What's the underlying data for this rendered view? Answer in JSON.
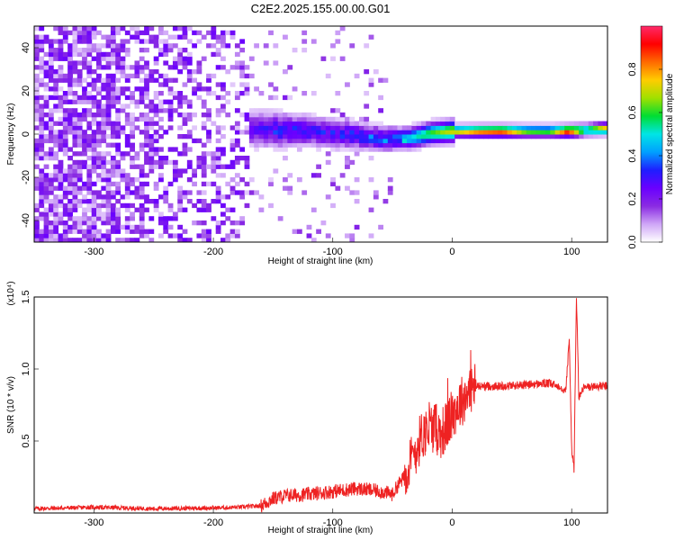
{
  "title": "C2E2.2025.155.00.00.G01",
  "chart_data": [
    {
      "type": "heatmap",
      "xlabel": "Height of straight line (km)",
      "ylabel": "Frequency (Hz)",
      "xlim": [
        -350,
        130
      ],
      "ylim": [
        -50,
        50
      ],
      "xticks": [
        -300,
        -200,
        -100,
        0,
        100
      ],
      "xtick_labels": [
        "-300",
        "-200",
        "-100",
        "0",
        "100"
      ],
      "yticks": [
        -40,
        -20,
        0,
        20,
        40
      ],
      "ytick_labels": [
        "-40",
        "-20",
        "0",
        "20",
        "40"
      ],
      "colorbar": {
        "label": "Normalized spectral amplitude",
        "range": [
          0.0,
          1.0
        ],
        "ticks": [
          0.0,
          0.2,
          0.4,
          0.6,
          0.8
        ],
        "tick_labels": [
          "0.0",
          "0.2",
          "0.4",
          "0.6",
          "0.8"
        ],
        "colormap": [
          "#ffffff",
          "#cfa6f7",
          "#8a2be2",
          "#6a00ff",
          "#1e1eff",
          "#00a0ff",
          "#00e5e5",
          "#00dd33",
          "#a0e000",
          "#ffcc00",
          "#ff6a00",
          "#ff0000",
          "#ff2a6a"
        ]
      },
      "ridge": [
        {
          "x": -170,
          "freq": 1.5,
          "amp": 0.22
        },
        {
          "x": -150,
          "freq": 1.0,
          "amp": 0.3
        },
        {
          "x": -120,
          "freq": 0.5,
          "amp": 0.28
        },
        {
          "x": -90,
          "freq": -1.0,
          "amp": 0.3
        },
        {
          "x": -60,
          "freq": -3.0,
          "amp": 0.36
        },
        {
          "x": -40,
          "freq": -3.0,
          "amp": 0.46
        },
        {
          "x": -20,
          "freq": -0.5,
          "amp": 0.6
        },
        {
          "x": 0,
          "freq": 0.5,
          "amp": 0.72
        },
        {
          "x": 20,
          "freq": 0.5,
          "amp": 0.85
        },
        {
          "x": 40,
          "freq": 0.5,
          "amp": 0.9
        },
        {
          "x": 60,
          "freq": 0.5,
          "amp": 0.65
        },
        {
          "x": 80,
          "freq": 0.5,
          "amp": 0.62
        },
        {
          "x": 95,
          "freq": 0.5,
          "amp": 0.95
        },
        {
          "x": 110,
          "freq": 1.0,
          "amp": 0.6
        },
        {
          "x": 125,
          "freq": 1.5,
          "amp": 0.78
        }
      ]
    },
    {
      "type": "line",
      "xlabel": "Height of straight line (km)",
      "ylabel": "SNR (10 * v/v)",
      "multiplier_label": "(x10⁴)",
      "xlim": [
        -350,
        130
      ],
      "ylim": [
        0,
        1.5
      ],
      "xticks": [
        -300,
        -200,
        -100,
        0,
        100
      ],
      "xtick_labels": [
        "-300",
        "-200",
        "-100",
        "0",
        "100"
      ],
      "yticks": [
        0.5,
        1.0,
        1.5
      ],
      "ytick_labels": [
        "0.5",
        "1.0",
        "1.5"
      ],
      "color": "#ee2222",
      "series": [
        {
          "x": [
            -350,
            -300,
            -250,
            -200,
            -180,
            -160,
            -150,
            -140,
            -120,
            -100,
            -80,
            -60,
            -50,
            -45,
            -40,
            -35,
            -30,
            -25,
            -20,
            -15,
            -10,
            -5,
            0,
            5,
            10,
            15,
            20,
            25,
            30,
            40,
            60,
            80,
            90,
            95,
            98,
            100,
            102,
            104,
            106,
            110,
            120,
            130
          ],
          "y": [
            0.03,
            0.04,
            0.03,
            0.035,
            0.04,
            0.05,
            0.1,
            0.12,
            0.13,
            0.15,
            0.17,
            0.15,
            0.13,
            0.2,
            0.25,
            0.35,
            0.45,
            0.55,
            0.58,
            0.6,
            0.55,
            0.6,
            0.68,
            0.75,
            0.8,
            0.86,
            0.88,
            0.88,
            0.88,
            0.88,
            0.89,
            0.9,
            0.88,
            0.85,
            1.2,
            0.45,
            0.3,
            1.52,
            0.8,
            0.87,
            0.88,
            0.88
          ]
        }
      ]
    }
  ]
}
